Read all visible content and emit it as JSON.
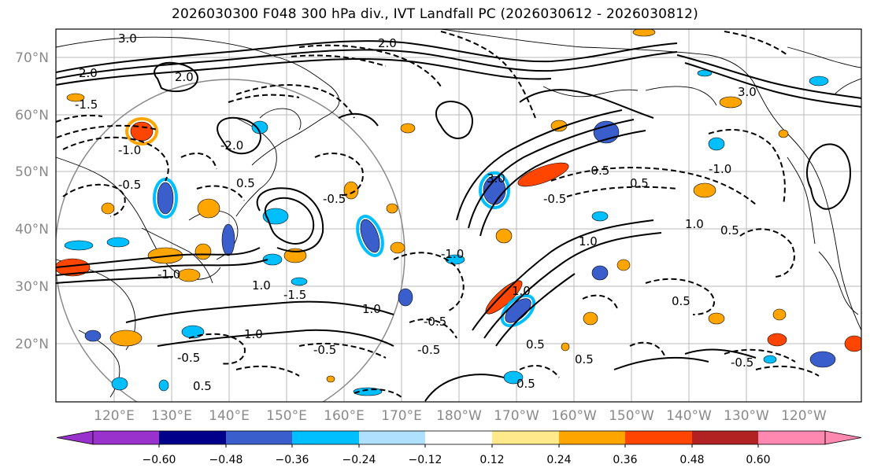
{
  "title": "2026030300 F048 300 hPa div., IVT Landfall PC (2026030612 - 2026030812)",
  "map": {
    "lat_labels": [
      "70°N",
      "60°N",
      "50°N",
      "40°N",
      "30°N",
      "20°N"
    ],
    "lon_labels": [
      "120°E",
      "130°E",
      "140°E",
      "150°E",
      "160°E",
      "170°E",
      "180°W",
      "170°W",
      "160°W",
      "150°W",
      "140°W",
      "130°W",
      "120°W"
    ],
    "contour_labels": [
      "3.0",
      "2.0",
      "2.0",
      "-1.5",
      "-1.0",
      "-0.5",
      "-1.0",
      "1.0",
      "-1.5",
      "-0.5",
      "0.5",
      "1.0",
      "-2.0",
      "2.0",
      "1.0",
      "3.0",
      "-0.5",
      "0.5",
      "-0.5",
      "1.0",
      "-1.0",
      "0.5",
      "-0.5",
      "0.5",
      "-0.5",
      "1.0",
      "-0.5",
      "0.5",
      "-0.5",
      "-0.5",
      "0.5",
      "1.0",
      "3.0",
      "0.5",
      "-1.0",
      "0.5"
    ]
  },
  "colorbar": {
    "colors": [
      "#9932cc",
      "#00008b",
      "#3a5fcd",
      "#00bfff",
      "#b0e0ff",
      "#ffffff",
      "#ffe98a",
      "#ffa500",
      "#ff4500",
      "#b22222",
      "#ff88b0"
    ],
    "tick_labels": [
      "−0.60",
      "−0.48",
      "−0.36",
      "−0.24",
      "−0.12",
      "0.12",
      "0.24",
      "0.36",
      "0.48",
      "0.60"
    ]
  }
}
